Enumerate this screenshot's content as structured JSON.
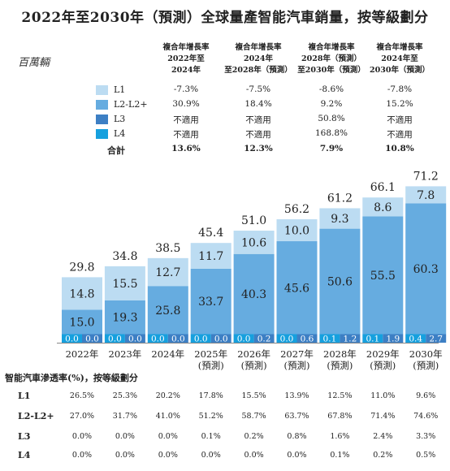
{
  "title": "2022年至2030年（預測）全球量產智能汽車銷量，按等級劃分",
  "unit_label": "百萬輛",
  "cagr_headers": [
    "複合年增長率\n2022年至\n2024年",
    "複合年增長率\n2024年\n至2028年（預測）",
    "複合年增長率\n2028年（預測）\n至2030年（預測）",
    "複合年增長率\n2024年至\n2030年（預測）"
  ],
  "colors": {
    "L1": "#bcdcf2",
    "L2-L2+": "#66ace0",
    "L3": "#3d7fc4",
    "L4": "#16a0de"
  },
  "legend": [
    {
      "name": "L1",
      "cagr": [
        "-7.3%",
        "-7.5%",
        "-8.6%",
        "-7.8%"
      ]
    },
    {
      "name": "L2-L2+",
      "cagr": [
        "30.9%",
        "18.4%",
        "9.2%",
        "15.2%"
      ]
    },
    {
      "name": "L3",
      "cagr": [
        "不適用",
        "不適用",
        "50.8%",
        "不適用"
      ]
    },
    {
      "name": "L4",
      "cagr": [
        "不適用",
        "不適用",
        "168.8%",
        "不適用"
      ]
    }
  ],
  "total_row": {
    "label": "合計",
    "cagr": [
      "13.6%",
      "12.3%",
      "7.9%",
      "10.8%"
    ]
  },
  "chart_data": {
    "type": "bar",
    "stacked": true,
    "categories": [
      "2022年",
      "2023年",
      "2024年",
      "2025年\n(預測)",
      "2026年\n(預測)",
      "2027年\n(預測)",
      "2028年\n(預測)",
      "2029年\n(預測)",
      "2030年\n(預測)"
    ],
    "series": [
      {
        "name": "L4",
        "values": [
          0.0,
          0.0,
          0.0,
          0.0,
          0.0,
          0.0,
          0.1,
          0.1,
          0.4
        ]
      },
      {
        "name": "L3",
        "values": [
          0.0,
          0.0,
          0.0,
          0.0,
          0.2,
          0.6,
          1.2,
          1.9,
          2.7
        ]
      },
      {
        "name": "L2-L2+",
        "values": [
          15.0,
          19.3,
          25.8,
          33.7,
          40.3,
          45.6,
          50.6,
          55.5,
          60.3
        ]
      },
      {
        "name": "L1",
        "values": [
          14.8,
          15.5,
          12.7,
          11.7,
          10.6,
          10.0,
          9.3,
          8.6,
          7.8
        ]
      }
    ],
    "labels": {
      "L4": [
        "0.0",
        "0.0",
        "0.0",
        "0.0",
        "0.0",
        "0.0",
        "0.1",
        "0.1",
        "0.4"
      ],
      "L3": [
        "0.0",
        "0.0",
        "0.0",
        "0.0",
        "0.2",
        "0.6",
        "1.2",
        "1.9",
        "2.7"
      ]
    },
    "totals": [
      29.8,
      34.8,
      38.5,
      45.4,
      51.0,
      56.2,
      61.2,
      66.1,
      71.2
    ],
    "ylim": [
      0,
      75
    ]
  },
  "penetration": {
    "title": "智能汽車滲透率(%)，按等級劃分",
    "rows": [
      {
        "label": "L1",
        "values": [
          "26.5%",
          "25.3%",
          "20.2%",
          "17.8%",
          "15.5%",
          "13.9%",
          "12.5%",
          "11.0%",
          "9.6%"
        ]
      },
      {
        "label": "L2-L2+",
        "values": [
          "27.0%",
          "31.7%",
          "41.0%",
          "51.2%",
          "58.7%",
          "63.7%",
          "67.8%",
          "71.4%",
          "74.6%"
        ]
      },
      {
        "label": "L3",
        "values": [
          "0.0%",
          "0.0%",
          "0.0%",
          "0.1%",
          "0.2%",
          "0.8%",
          "1.6%",
          "2.4%",
          "3.3%"
        ]
      },
      {
        "label": "L4",
        "values": [
          "0.0%",
          "0.0%",
          "0.0%",
          "0.0%",
          "0.0%",
          "0.0%",
          "0.1%",
          "0.2%",
          "0.5%"
        ]
      }
    ]
  }
}
